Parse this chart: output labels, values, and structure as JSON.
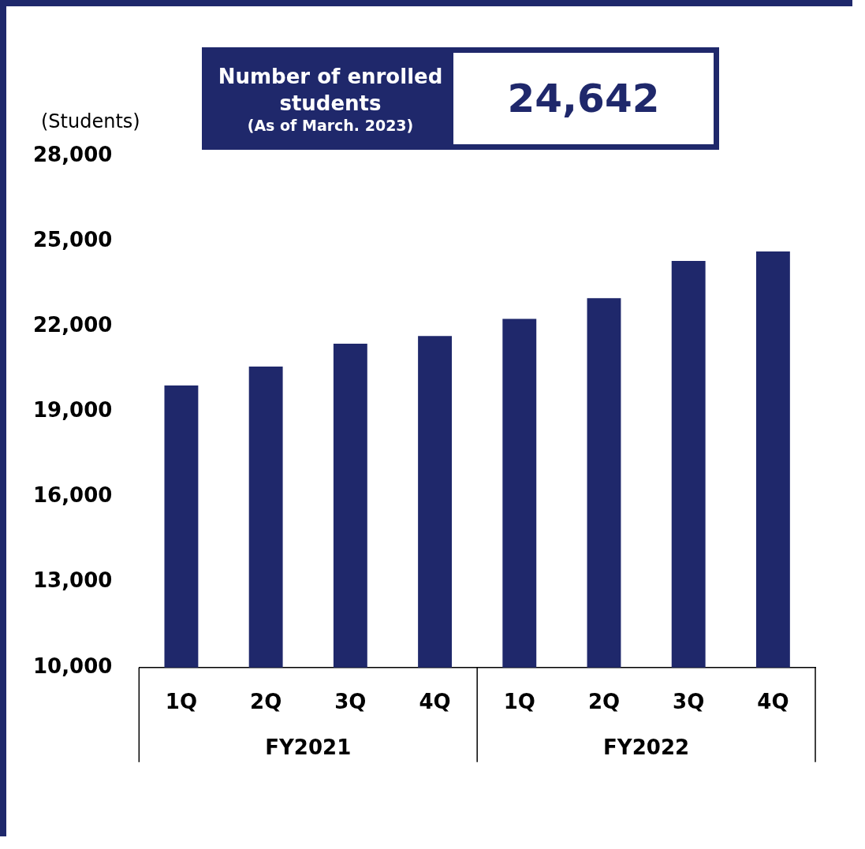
{
  "chart_data": {
    "type": "bar",
    "ylabel": "(Students)",
    "categories": [
      "1Q",
      "2Q",
      "3Q",
      "4Q",
      "1Q",
      "2Q",
      "3Q",
      "4Q"
    ],
    "values": [
      19930,
      20590,
      21400,
      21670,
      22270,
      23000,
      24310,
      24642
    ],
    "color": "#1f286b",
    "ylim": [
      10000,
      28000
    ],
    "yticks": [
      {
        "value": 10000,
        "label": "10,000"
      },
      {
        "value": 13000,
        "label": "13,000"
      },
      {
        "value": 16000,
        "label": "16,000"
      },
      {
        "value": 19000,
        "label": "19,000"
      },
      {
        "value": 22000,
        "label": "22,000"
      },
      {
        "value": 25000,
        "label": "25,000"
      },
      {
        "value": 28000,
        "label": "28,000"
      }
    ],
    "grid": false,
    "legend": false,
    "annotations": [
      "Number of enrolled students",
      "(As of March. 2023)",
      "24,642",
      "FY2021",
      "FY2022"
    ]
  }
}
